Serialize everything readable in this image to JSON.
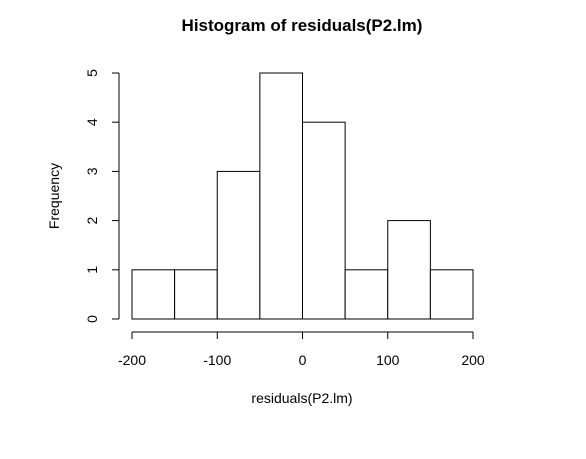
{
  "chart_data": {
    "type": "bar",
    "title": "Histogram of residuals(P2.lm)",
    "xlabel": "residuals(P2.lm)",
    "ylabel": "Frequency",
    "bins": [
      {
        "start": -200,
        "end": -150,
        "count": 1
      },
      {
        "start": -150,
        "end": -100,
        "count": 1
      },
      {
        "start": -100,
        "end": -50,
        "count": 3
      },
      {
        "start": -50,
        "end": 0,
        "count": 5
      },
      {
        "start": 0,
        "end": 50,
        "count": 4
      },
      {
        "start": 50,
        "end": 100,
        "count": 1
      },
      {
        "start": 100,
        "end": 150,
        "count": 2
      },
      {
        "start": 150,
        "end": 200,
        "count": 1
      }
    ],
    "xlim": [
      -200,
      200
    ],
    "ylim": [
      0,
      5
    ],
    "xticks": [
      "-200",
      "-100",
      "0",
      "100",
      "200"
    ],
    "yticks": [
      "0",
      "1",
      "2",
      "3",
      "4",
      "5"
    ],
    "colors": {
      "bar_fill": "#ffffff",
      "bar_stroke": "#000000",
      "axis": "#000000",
      "text": "#000000"
    },
    "grid": false,
    "legend": "none"
  }
}
